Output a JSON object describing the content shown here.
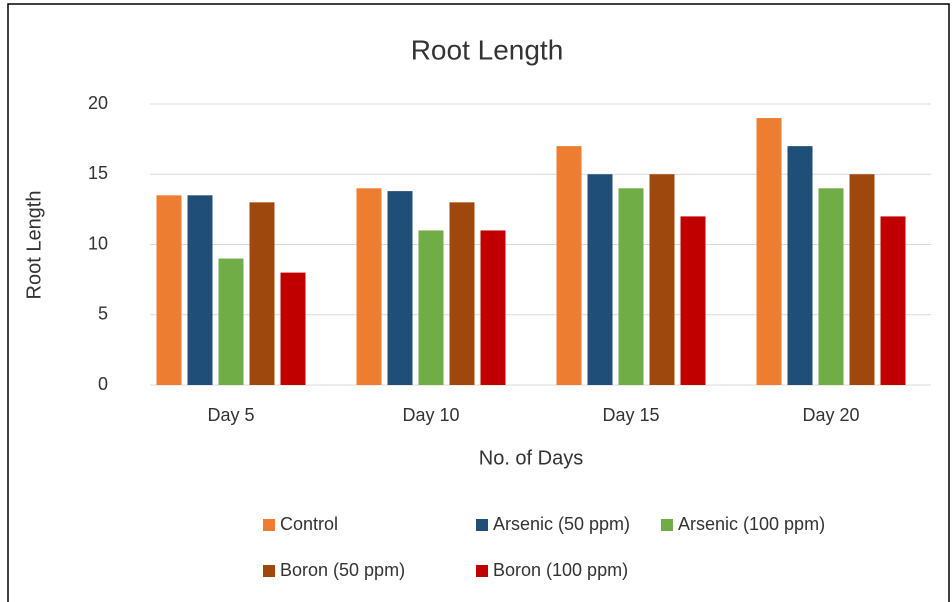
{
  "chart_data": {
    "type": "bar",
    "title": "Root Length",
    "x_label": "No. of Days",
    "y_label": "Root Length",
    "categories": [
      "Day 5",
      "Day 10",
      "Day 15",
      "Day 20"
    ],
    "series": [
      {
        "name": "Control",
        "color": "#ed7d31",
        "values": [
          13.5,
          14,
          17,
          19
        ]
      },
      {
        "name": "Arsenic (50 ppm)",
        "color": "#1f4e79",
        "values": [
          13.5,
          13.8,
          15,
          17
        ]
      },
      {
        "name": "Arsenic (100 ppm)",
        "color": "#70ad47",
        "values": [
          9,
          11,
          14,
          14
        ]
      },
      {
        "name": "Boron (50 ppm)",
        "color": "#9e480e",
        "values": [
          13,
          13,
          15,
          15
        ]
      },
      {
        "name": "Boron (100 ppm)",
        "color": "#c00000",
        "values": [
          8,
          11,
          12,
          12
        ]
      }
    ],
    "ylim": [
      0,
      20
    ],
    "yticks": [
      0,
      5,
      10,
      15,
      20
    ],
    "grid": true,
    "legend": "bottom"
  }
}
